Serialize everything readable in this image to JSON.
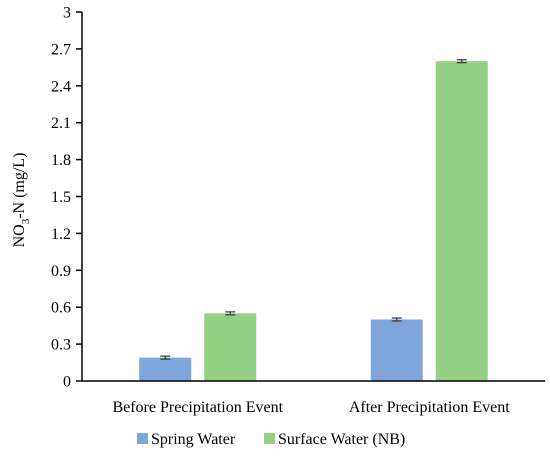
{
  "chart_data": {
    "type": "bar",
    "categories": [
      "Before Precipitation Event",
      "After Precipitation Event"
    ],
    "series": [
      {
        "name": "Spring Water",
        "values": [
          0.19,
          0.5
        ],
        "errors": [
          0.012,
          0.012
        ],
        "color": "#7ea6dc"
      },
      {
        "name": "Surface Water (NB)",
        "values": [
          0.55,
          2.6
        ],
        "errors": [
          0.012,
          0.012
        ],
        "color": "#93d083"
      }
    ],
    "ylabel": {
      "main": "NO",
      "sub": "3",
      "rest": "-N (mg/L)"
    },
    "ylim": [
      0,
      3
    ],
    "yticks": [
      "0",
      "0.3",
      "0.6",
      "0.9",
      "1.2",
      "1.5",
      "1.8",
      "2.1",
      "2.4",
      "2.7",
      "3"
    ],
    "grid": false,
    "legend": "bottom",
    "error_bar_color": "#404040"
  }
}
